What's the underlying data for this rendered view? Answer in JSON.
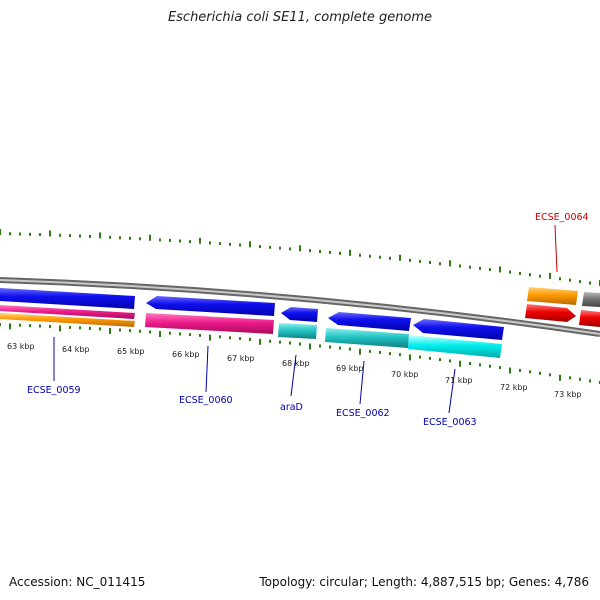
{
  "title": "Escherichia coli SE11, complete genome",
  "footer": {
    "accession": "Accession: NC_011415",
    "summary": "Topology: circular; Length: 4,887,515 bp; Genes: 4,786"
  },
  "kbp_labels": [
    "63 kbp",
    "64 kbp",
    "65 kbp",
    "66 kbp",
    "67 kbp",
    "68 kbp",
    "69 kbp",
    "70 kbp",
    "71 kbp",
    "72 kbp",
    "73 kbp"
  ],
  "gene_labels": [
    {
      "text": "ECSE_0059",
      "color": "#0000aa"
    },
    {
      "text": "ECSE_0060",
      "color": "#0000aa"
    },
    {
      "text": "araD",
      "color": "#0000aa"
    },
    {
      "text": "ECSE_0062",
      "color": "#0000aa"
    },
    {
      "text": "ECSE_0063",
      "color": "#0000aa"
    },
    {
      "text": "ECSE_0064",
      "color": "#cc0000"
    }
  ],
  "colors": {
    "backbone": "#888888",
    "tick": "#2e7d12",
    "cds_blue": "#1010ee",
    "magenta": "#ee1c8c",
    "orange": "#ff9900",
    "teal": "#22c4c4",
    "cyan": "#00eeee",
    "red": "#ee0000",
    "gray": "#777777"
  }
}
